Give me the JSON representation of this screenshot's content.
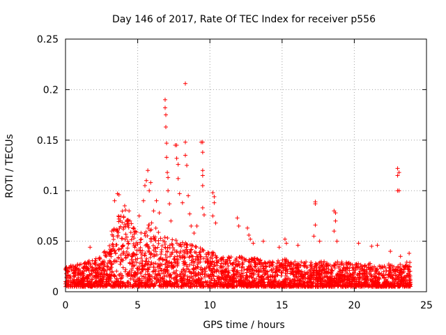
{
  "chart_data": {
    "type": "scatter",
    "title": "Day 146 of 2017, Rate Of TEC Index for receiver p556",
    "xlabel": "GPS time / hours",
    "ylabel": "ROTI / TECUs",
    "xlim": [
      0,
      25
    ],
    "ylim": [
      0,
      0.25
    ],
    "xticks": [
      0,
      5,
      10,
      15,
      20,
      25
    ],
    "yticks": [
      0,
      0.05,
      0.1,
      0.15,
      0.2,
      0.25
    ],
    "xtick_labels": [
      "0",
      "5",
      "10",
      "15",
      "20",
      "25"
    ],
    "ytick_labels": [
      "0",
      "0.05",
      "0.1",
      "0.15",
      "0.2",
      "0.25"
    ],
    "grid": true,
    "marker": "+",
    "series": [
      {
        "name": "ROTI",
        "color": "#ff0000",
        "note": "dense dataset; band points below summarize the bulk distribution, outliers listed individually",
        "band": {
          "x_range": [
            0,
            23.9
          ],
          "y_min": 0.005,
          "y_max_profile": [
            [
              0,
              0.025
            ],
            [
              1,
              0.028
            ],
            [
              2,
              0.032
            ],
            [
              3,
              0.045
            ],
            [
              3.5,
              0.07
            ],
            [
              4,
              0.085
            ],
            [
              4.5,
              0.075
            ],
            [
              5,
              0.06
            ],
            [
              5.5,
              0.065
            ],
            [
              6,
              0.07
            ],
            [
              6.5,
              0.06
            ],
            [
              7,
              0.055
            ],
            [
              8,
              0.05
            ],
            [
              9,
              0.045
            ],
            [
              10,
              0.04
            ],
            [
              11,
              0.035
            ],
            [
              12,
              0.035
            ],
            [
              13,
              0.035
            ],
            [
              14,
              0.03
            ],
            [
              15,
              0.033
            ],
            [
              16,
              0.03
            ],
            [
              17,
              0.03
            ],
            [
              18,
              0.03
            ],
            [
              19,
              0.03
            ],
            [
              20,
              0.028
            ],
            [
              21,
              0.028
            ],
            [
              22,
              0.027
            ],
            [
              23,
              0.028
            ],
            [
              23.9,
              0.03
            ]
          ]
        },
        "outliers": [
          [
            1.7,
            0.044
          ],
          [
            3.2,
            0.06
          ],
          [
            3.4,
            0.09
          ],
          [
            3.6,
            0.097
          ],
          [
            3.7,
            0.096
          ],
          [
            4.1,
            0.085
          ],
          [
            4.4,
            0.08
          ],
          [
            5.1,
            0.075
          ],
          [
            5.4,
            0.09
          ],
          [
            5.5,
            0.105
          ],
          [
            5.6,
            0.11
          ],
          [
            5.7,
            0.12
          ],
          [
            5.8,
            0.1
          ],
          [
            5.9,
            0.108
          ],
          [
            6.1,
            0.08
          ],
          [
            6.3,
            0.09
          ],
          [
            6.5,
            0.078
          ],
          [
            6.9,
            0.19
          ],
          [
            6.9,
            0.182
          ],
          [
            6.95,
            0.175
          ],
          [
            6.95,
            0.163
          ],
          [
            7.0,
            0.147
          ],
          [
            7.0,
            0.133
          ],
          [
            7.05,
            0.118
          ],
          [
            7.1,
            0.113
          ],
          [
            7.1,
            0.1
          ],
          [
            7.2,
            0.087
          ],
          [
            7.3,
            0.07
          ],
          [
            7.6,
            0.145
          ],
          [
            7.7,
            0.145
          ],
          [
            7.7,
            0.132
          ],
          [
            7.8,
            0.126
          ],
          [
            7.8,
            0.112
          ],
          [
            7.9,
            0.097
          ],
          [
            8.1,
            0.088
          ],
          [
            8.3,
            0.206
          ],
          [
            8.3,
            0.148
          ],
          [
            8.3,
            0.135
          ],
          [
            8.4,
            0.125
          ],
          [
            8.5,
            0.095
          ],
          [
            8.6,
            0.077
          ],
          [
            8.7,
            0.065
          ],
          [
            8.9,
            0.058
          ],
          [
            9.1,
            0.065
          ],
          [
            9.4,
            0.148
          ],
          [
            9.5,
            0.148
          ],
          [
            9.5,
            0.138
          ],
          [
            9.5,
            0.12
          ],
          [
            9.5,
            0.115
          ],
          [
            9.5,
            0.105
          ],
          [
            9.5,
            0.083
          ],
          [
            9.6,
            0.076
          ],
          [
            10.2,
            0.098
          ],
          [
            10.3,
            0.094
          ],
          [
            10.3,
            0.088
          ],
          [
            10.2,
            0.075
          ],
          [
            10.4,
            0.068
          ],
          [
            11.9,
            0.073
          ],
          [
            12.0,
            0.065
          ],
          [
            12.6,
            0.063
          ],
          [
            12.7,
            0.056
          ],
          [
            12.8,
            0.052
          ],
          [
            13.0,
            0.048
          ],
          [
            13.7,
            0.05
          ],
          [
            14.8,
            0.044
          ],
          [
            15.2,
            0.052
          ],
          [
            15.3,
            0.048
          ],
          [
            16.1,
            0.046
          ],
          [
            17.3,
            0.089
          ],
          [
            17.3,
            0.087
          ],
          [
            17.3,
            0.066
          ],
          [
            17.2,
            0.055
          ],
          [
            17.6,
            0.05
          ],
          [
            18.6,
            0.08
          ],
          [
            18.7,
            0.078
          ],
          [
            18.7,
            0.07
          ],
          [
            18.6,
            0.06
          ],
          [
            18.8,
            0.05
          ],
          [
            20.3,
            0.048
          ],
          [
            21.2,
            0.045
          ],
          [
            21.6,
            0.046
          ],
          [
            22.5,
            0.04
          ],
          [
            23.0,
            0.122
          ],
          [
            23.1,
            0.118
          ],
          [
            23.0,
            0.115
          ],
          [
            23.0,
            0.1
          ],
          [
            23.1,
            0.1
          ],
          [
            23.2,
            0.035
          ],
          [
            23.8,
            0.038
          ]
        ]
      }
    ]
  }
}
